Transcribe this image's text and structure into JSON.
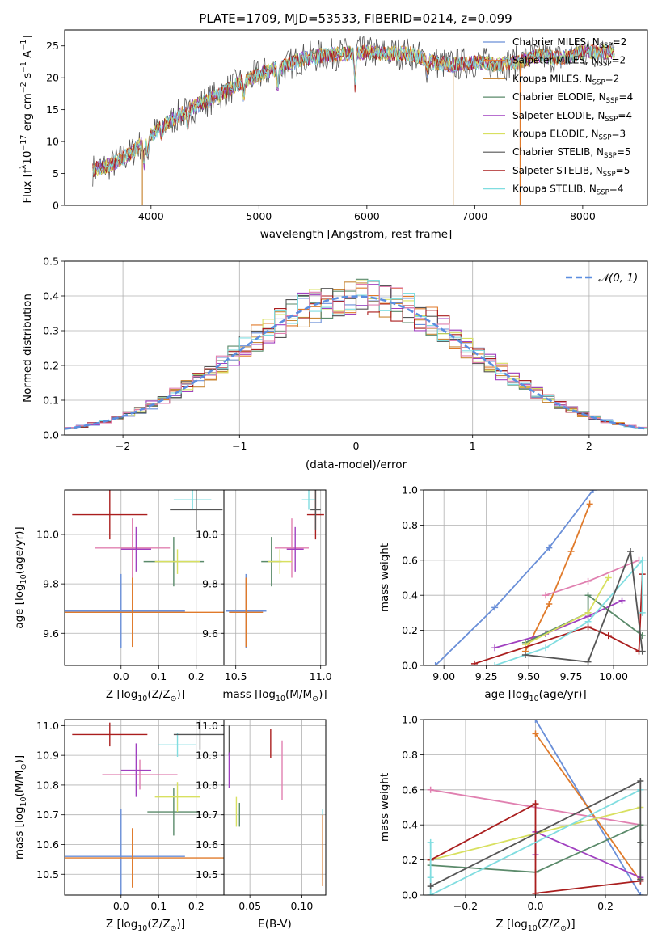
{
  "title": "PLATE=1709, MJD=53533, FIBERID=0214, z=0.099",
  "colors": {
    "Chabrier MILES": "#6a8fd8",
    "Salpeter MILES": "#e07a2a",
    "Kroupa MILES": "#c98a3a",
    "Chabrier ELODIE": "#5a8a6a",
    "Salpeter ELODIE": "#a040c0",
    "Kroupa ELODIE": "#d8e060",
    "Chabrier STELIB": "#555555",
    "Salpeter STELIB": "#aa1e1e",
    "Kroupa STELIB": "#80dde0",
    "Pink": "#e080b0",
    "Gauss": "#5b8ee0"
  },
  "chart_data": [
    {
      "id": "spectrum",
      "type": "line",
      "xlabel": "wavelength [Angstrom, rest frame]",
      "ylabel_parts": [
        "Flux [f",
        "λ",
        "10",
        "−17",
        " erg cm",
        "−2",
        " s",
        "−1",
        " A",
        "−1",
        "]"
      ],
      "xlim": [
        3200,
        8600
      ],
      "ylim": [
        0,
        27.5
      ],
      "xticks": [
        4000,
        5000,
        6000,
        7000,
        8000
      ],
      "yticks": [
        0,
        5,
        10,
        15,
        20,
        25
      ],
      "legend_position": "top-right",
      "continuum": {
        "x": [
          3450,
          3650,
          3800,
          4000,
          4200,
          4400,
          4600,
          4800,
          5000,
          5200,
          5400,
          5600,
          5800,
          6000,
          6200,
          6400,
          6600,
          6800,
          7000,
          7200,
          7400,
          7600,
          7800,
          8000,
          8200
        ],
        "y": [
          5.5,
          6.5,
          8.0,
          11.0,
          13.5,
          15.5,
          17.0,
          19.0,
          20.5,
          21.5,
          23.0,
          23.5,
          23.8,
          24.0,
          23.8,
          23.8,
          22.5,
          22.0,
          22.5,
          22.0,
          22.5,
          23.5,
          23.0,
          24.0,
          24.0
        ]
      },
      "series": [
        {
          "name": "Chabrier MILES",
          "nssp": 2
        },
        {
          "name": "Salpeter MILES",
          "nssp": 2
        },
        {
          "name": "Kroupa MILES",
          "nssp": 2
        },
        {
          "name": "Chabrier ELODIE",
          "nssp": 4
        },
        {
          "name": "Salpeter ELODIE",
          "nssp": 4
        },
        {
          "name": "Kroupa ELODIE",
          "nssp": 3
        },
        {
          "name": "Chabrier STELIB",
          "nssp": 5
        },
        {
          "name": "Salpeter STELIB",
          "nssp": 5
        },
        {
          "name": "Kroupa STELIB",
          "nssp": 4
        }
      ]
    },
    {
      "id": "residuals",
      "type": "line",
      "xlabel": "(data-model)/error",
      "ylabel": "Normed distribution",
      "xlim": [
        -2.5,
        2.5
      ],
      "ylim": [
        0,
        0.5
      ],
      "xticks": [
        -2,
        -1,
        0,
        1,
        2
      ],
      "yticks": [
        0.0,
        0.1,
        0.2,
        0.3,
        0.4,
        0.5
      ],
      "grid": true,
      "legend": "𝒩(0, 1)",
      "legend_position": "top-right",
      "bin_width": 0.1
    },
    {
      "id": "age-Z",
      "type": "scatter",
      "xlabel_parts": [
        "Z [log",
        "10",
        "(Z/Z",
        "⊙",
        ")]"
      ],
      "ylabel_parts": [
        "age  [log",
        "10",
        "(age/yr)]"
      ],
      "xlim": [
        -0.15,
        0.28
      ],
      "ylim": [
        9.47,
        10.18
      ],
      "xticks": [
        0.0,
        0.1,
        0.2
      ],
      "yticks": [
        9.6,
        9.8,
        10.0
      ],
      "grid": true,
      "points": [
        {
          "model": "Chabrier MILES",
          "x": 0.0,
          "y": 9.69,
          "xerr": 0.17,
          "yerr": 0.15
        },
        {
          "model": "Salpeter MILES",
          "x": 0.03,
          "y": 9.685,
          "xerr": 0.25,
          "yerr": 0.14
        },
        {
          "model": "Pink",
          "x": 0.03,
          "y": 9.945,
          "xerr": 0.1,
          "yerr": 0.12
        },
        {
          "model": "Salpeter ELODIE",
          "x": 0.04,
          "y": 9.94,
          "xerr": 0.04,
          "yerr": 0.09
        },
        {
          "model": "Chabrier ELODIE",
          "x": 0.14,
          "y": 9.89,
          "xerr": 0.08,
          "yerr": 0.1
        },
        {
          "model": "Kroupa ELODIE",
          "x": 0.15,
          "y": 9.89,
          "xerr": 0.06,
          "yerr": 0.05
        },
        {
          "model": "Salpeter STELIB",
          "x": -0.03,
          "y": 10.08,
          "xerr": 0.1,
          "yerr": 0.1
        },
        {
          "model": "Kroupa STELIB",
          "x": 0.19,
          "y": 10.14,
          "xerr": 0.05,
          "yerr": 0.04
        },
        {
          "model": "Chabrier STELIB",
          "x": 0.2,
          "y": 10.1,
          "xerr": 0.07,
          "yerr": 0.08
        }
      ]
    },
    {
      "id": "age-mass",
      "type": "scatter",
      "xlabel_parts": [
        "mass [log",
        "10",
        "(M/M",
        "⊙",
        ")]"
      ],
      "xlim": [
        10.43,
        11.03
      ],
      "ylim": [
        9.47,
        10.18
      ],
      "xticks": [
        10.5,
        11.0
      ],
      "yticks": [
        9.6,
        9.8,
        10.0
      ],
      "grid": true,
      "points": [
        {
          "model": "Chabrier MILES",
          "x": 10.56,
          "y": 9.69,
          "xerr": 0.12,
          "yerr": 0.15
        },
        {
          "model": "Salpeter MILES",
          "x": 10.56,
          "y": 9.685,
          "xerr": 0.1,
          "yerr": 0.14
        },
        {
          "model": "Pink",
          "x": 10.83,
          "y": 9.945,
          "xerr": 0.1,
          "yerr": 0.12
        },
        {
          "model": "Salpeter ELODIE",
          "x": 10.85,
          "y": 9.94,
          "xerr": 0.05,
          "yerr": 0.09
        },
        {
          "model": "Chabrier ELODIE",
          "x": 10.71,
          "y": 9.89,
          "xerr": 0.06,
          "yerr": 0.1
        },
        {
          "model": "Kroupa ELODIE",
          "x": 10.76,
          "y": 9.89,
          "xerr": 0.07,
          "yerr": 0.05
        },
        {
          "model": "Salpeter STELIB",
          "x": 10.97,
          "y": 10.08,
          "xerr": 0.05,
          "yerr": 0.1
        },
        {
          "model": "Kroupa STELIB",
          "x": 10.93,
          "y": 10.14,
          "xerr": 0.04,
          "yerr": 0.04
        },
        {
          "model": "Chabrier STELIB",
          "x": 10.97,
          "y": 10.1,
          "xerr": 0.03,
          "yerr": 0.08
        }
      ]
    },
    {
      "id": "weight-age",
      "type": "line",
      "xlabel_parts": [
        "age  [log",
        "10",
        "(age/yr)]"
      ],
      "ylabel": "mass weight",
      "xlim": [
        8.88,
        10.2
      ],
      "ylim": [
        0,
        1.0
      ],
      "xticks": [
        9.0,
        9.25,
        9.5,
        9.75,
        10.0
      ],
      "yticks": [
        0.0,
        0.2,
        0.4,
        0.6,
        0.8,
        1.0
      ],
      "grid": true,
      "series": [
        {
          "model": "Chabrier MILES",
          "x": [
            8.95,
            9.3,
            9.62,
            9.88
          ],
          "y": [
            0.0,
            0.33,
            0.67,
            1.0
          ]
        },
        {
          "model": "Salpeter MILES",
          "x": [
            9.48,
            9.62,
            9.75,
            9.86
          ],
          "y": [
            0.08,
            0.35,
            0.65,
            0.92
          ]
        },
        {
          "model": "Pink",
          "x": [
            9.6,
            9.85,
            10.15
          ],
          "y": [
            0.4,
            0.48,
            0.6
          ]
        },
        {
          "model": "Salpeter ELODIE",
          "x": [
            9.3,
            9.6,
            9.85,
            10.05
          ],
          "y": [
            0.1,
            0.18,
            0.28,
            0.37
          ]
        },
        {
          "model": "Chabrier ELODIE",
          "x": [
            9.48,
            9.85,
            9.85,
            10.17
          ],
          "y": [
            0.13,
            0.3,
            0.4,
            0.17
          ]
        },
        {
          "model": "Kroupa ELODIE",
          "x": [
            9.48,
            9.85,
            9.97
          ],
          "y": [
            0.12,
            0.3,
            0.5
          ]
        },
        {
          "model": "Salpeter STELIB",
          "x": [
            9.18,
            9.85,
            9.97,
            10.15,
            10.17
          ],
          "y": [
            0.01,
            0.22,
            0.17,
            0.08,
            0.52
          ]
        },
        {
          "model": "Kroupa STELIB",
          "x": [
            9.3,
            9.6,
            9.85,
            10.17,
            10.17
          ],
          "y": [
            0.0,
            0.1,
            0.25,
            0.6,
            0.3
          ]
        },
        {
          "model": "Chabrier STELIB",
          "x": [
            9.48,
            9.85,
            10.1,
            10.17
          ],
          "y": [
            0.06,
            0.02,
            0.65,
            0.08
          ]
        }
      ]
    },
    {
      "id": "mass-Z",
      "type": "scatter",
      "xlabel_parts": [
        "Z [log",
        "10",
        "(Z/Z",
        "⊙",
        ")]"
      ],
      "ylabel_parts": [
        "mass [log",
        "10",
        "(M/M",
        "⊙",
        ")]"
      ],
      "xlim": [
        -0.15,
        0.28
      ],
      "ylim": [
        10.43,
        11.02
      ],
      "xticks": [
        0.0,
        0.1,
        0.2
      ],
      "yticks": [
        10.5,
        10.6,
        10.7,
        10.8,
        10.9,
        11.0
      ],
      "grid": true,
      "points": [
        {
          "model": "Chabrier MILES",
          "x": 0.0,
          "y": 10.56,
          "xerr": 0.17,
          "yerr": 0.16
        },
        {
          "model": "Salpeter MILES",
          "x": 0.03,
          "y": 10.555,
          "xerr": 0.25,
          "yerr": 0.1
        },
        {
          "model": "Pink",
          "x": 0.05,
          "y": 10.835,
          "xerr": 0.1,
          "yerr": 0.05
        },
        {
          "model": "Salpeter ELODIE",
          "x": 0.04,
          "y": 10.85,
          "xerr": 0.04,
          "yerr": 0.09
        },
        {
          "model": "Chabrier ELODIE",
          "x": 0.14,
          "y": 10.71,
          "xerr": 0.07,
          "yerr": 0.08
        },
        {
          "model": "Kroupa ELODIE",
          "x": 0.15,
          "y": 10.76,
          "xerr": 0.06,
          "yerr": 0.05
        },
        {
          "model": "Salpeter STELIB",
          "x": -0.03,
          "y": 10.97,
          "xerr": 0.1,
          "yerr": 0.04
        },
        {
          "model": "Kroupa STELIB",
          "x": 0.15,
          "y": 10.935,
          "xerr": 0.05,
          "yerr": 0.04
        },
        {
          "model": "Chabrier STELIB",
          "x": 0.21,
          "y": 10.97,
          "xerr": 0.07,
          "yerr": 0.05
        }
      ]
    },
    {
      "id": "mass-ebv",
      "type": "scatter",
      "xlabel": "E(B-V)",
      "xlim": [
        0.025,
        0.123
      ],
      "ylim": [
        10.43,
        11.02
      ],
      "xticks": [
        0.05,
        0.1
      ],
      "yticks": [
        10.5,
        10.6,
        10.7,
        10.8,
        10.9,
        11.0
      ],
      "grid": true,
      "points": [
        {
          "model": "Chabrier STELIB",
          "x": 0.03,
          "y": 10.95,
          "yerr": 0.05
        },
        {
          "model": "Salpeter ELODIE",
          "x": 0.03,
          "y": 10.85,
          "yerr": 0.06
        },
        {
          "model": "Kroupa ELODIE",
          "x": 0.037,
          "y": 10.71,
          "yerr": 0.05
        },
        {
          "model": "Chabrier ELODIE",
          "x": 0.04,
          "y": 10.7,
          "yerr": 0.04
        },
        {
          "model": "Salpeter STELIB",
          "x": 0.07,
          "y": 10.94,
          "yerr": 0.05
        },
        {
          "model": "Pink",
          "x": 0.081,
          "y": 10.85,
          "yerr": 0.1
        },
        {
          "model": "Kroupa STELIB",
          "x": 0.12,
          "y": 10.6,
          "yerr": 0.12
        },
        {
          "model": "Salpeter MILES",
          "x": 0.12,
          "y": 10.58,
          "yerr": 0.12
        }
      ]
    },
    {
      "id": "weight-Z",
      "type": "line",
      "xlabel_parts": [
        "Z [log",
        "10",
        "(Z/Z",
        "⊙",
        ")]"
      ],
      "ylabel": "mass weight",
      "xlim": [
        -0.32,
        0.32
      ],
      "ylim": [
        0,
        1.0
      ],
      "xticks": [
        -0.2,
        0.0,
        0.2
      ],
      "yticks": [
        0.0,
        0.2,
        0.4,
        0.6,
        0.8,
        1.0
      ],
      "grid": true,
      "series": [
        {
          "model": "Chabrier MILES",
          "x": [
            0.0,
            0.3
          ],
          "y": [
            1.0,
            0.0
          ]
        },
        {
          "model": "Salpeter MILES",
          "x": [
            0.0,
            0.3
          ],
          "y": [
            0.92,
            0.08
          ]
        },
        {
          "model": "Pink",
          "x": [
            -0.3,
            0.3
          ],
          "y": [
            0.6,
            0.4
          ]
        },
        {
          "model": "Salpeter ELODIE",
          "x": [
            0.0,
            0.0,
            0.3,
            0.3
          ],
          "y": [
            0.23,
            0.36,
            0.1,
            0.09
          ]
        },
        {
          "model": "Chabrier ELODIE",
          "x": [
            -0.3,
            0.0,
            0.3,
            0.3
          ],
          "y": [
            0.17,
            0.13,
            0.4,
            0.3
          ]
        },
        {
          "model": "Kroupa ELODIE",
          "x": [
            -0.3,
            0.3
          ],
          "y": [
            0.2,
            0.5
          ]
        },
        {
          "model": "Salpeter STELIB",
          "x": [
            -0.3,
            0.0,
            0.0,
            0.3,
            0.3
          ],
          "y": [
            0.2,
            0.52,
            0.01,
            0.08,
            0.08
          ]
        },
        {
          "model": "Kroupa STELIB",
          "x": [
            -0.3,
            -0.3,
            -0.3,
            0.3
          ],
          "y": [
            0.3,
            0.1,
            0.0,
            0.6
          ]
        },
        {
          "model": "Chabrier STELIB",
          "x": [
            -0.3,
            0.3,
            0.3,
            0.3
          ],
          "y": [
            0.05,
            0.65,
            0.3,
            0.09
          ]
        }
      ]
    }
  ]
}
